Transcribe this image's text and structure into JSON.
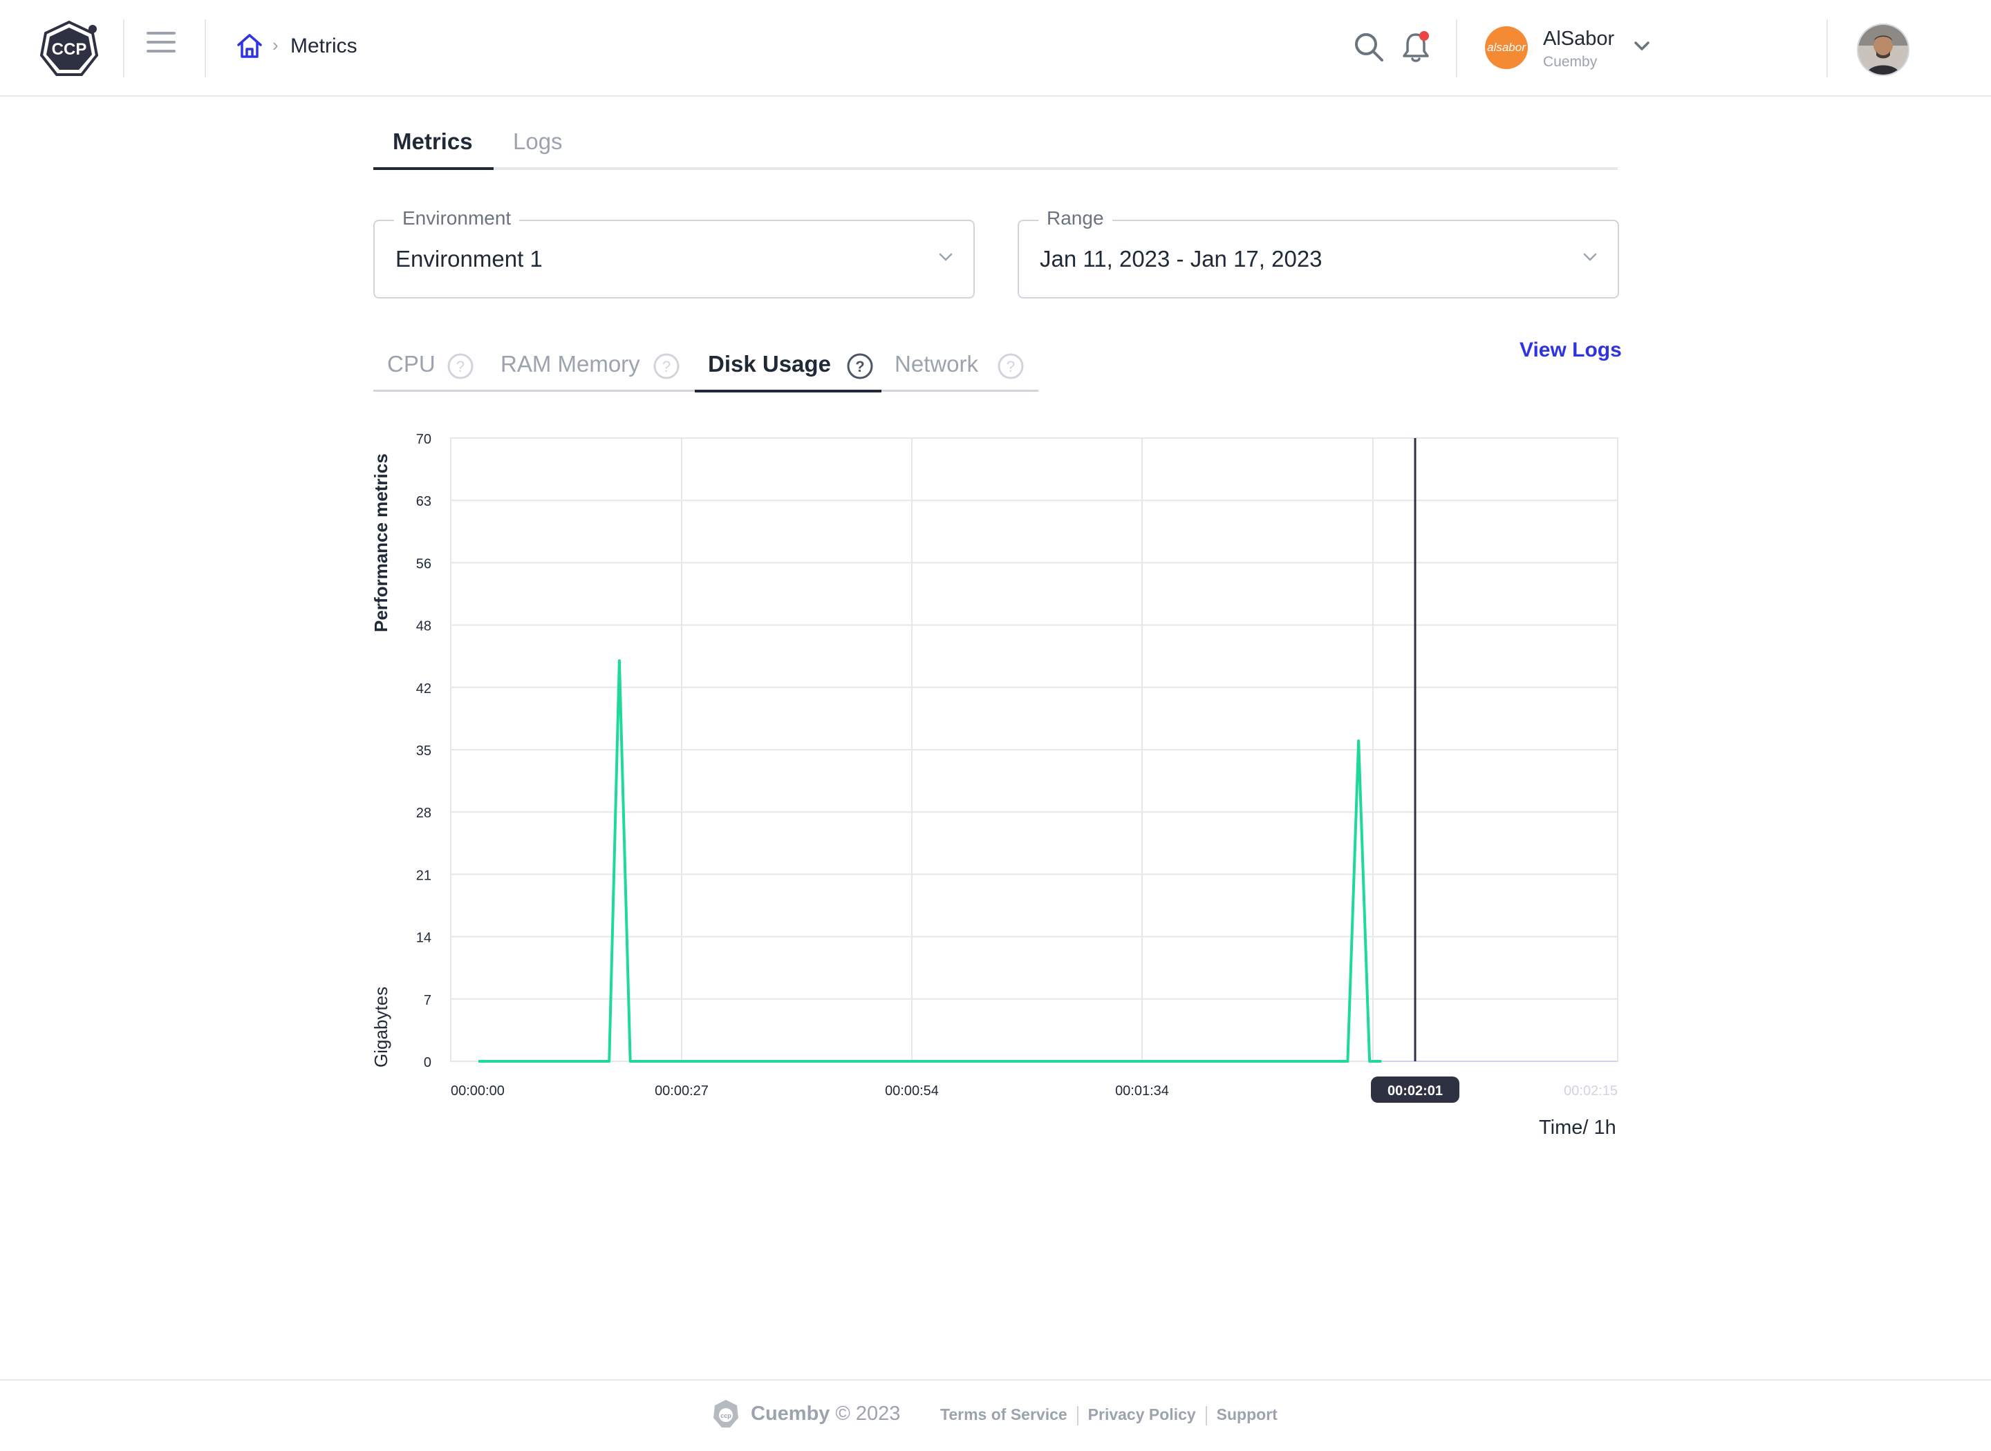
{
  "header": {
    "logo_text": "CCP",
    "breadcrumb": {
      "current": "Metrics"
    },
    "organization": {
      "name": "AlSabor",
      "subtitle": "Cuemby",
      "avatar_text": "alsabor"
    }
  },
  "page_tabs": [
    {
      "label": "Metrics",
      "active": true
    },
    {
      "label": "Logs",
      "active": false
    }
  ],
  "environment": {
    "legend": "Environment",
    "value": "Environment 1"
  },
  "range": {
    "legend": "Range",
    "value": "Jan 11, 2023 - Jan 17, 2023"
  },
  "metric_tabs": [
    {
      "label": "CPU",
      "active": false
    },
    {
      "label": "RAM Memory",
      "active": false
    },
    {
      "label": "Disk Usage",
      "active": true
    },
    {
      "label": "Network",
      "active": false
    }
  ],
  "view_logs_label": "View Logs",
  "chart_data": {
    "type": "line",
    "ylabel_top": "Performance metrics",
    "ylabel_bottom": "Gigabytes",
    "xlabel": "Time/ 1h",
    "y_ticks": [
      "70",
      "63",
      "56",
      "48",
      "42",
      "35",
      "28",
      "21",
      "14",
      "7",
      "0"
    ],
    "ylim": [
      0,
      70
    ],
    "x_ticks": [
      "00:00:00",
      "00:00:27",
      "00:00:54",
      "00:01:34",
      "00:02:01",
      "00:02:15"
    ],
    "grid": true,
    "series": [
      {
        "color": "#1fd99a",
        "points": [
          {
            "t": 0,
            "v": 0
          },
          {
            "t": 15.5,
            "v": 0
          },
          {
            "t": 16.7,
            "v": 45
          },
          {
            "t": 18,
            "v": 0
          },
          {
            "t": 103,
            "v": 0
          },
          {
            "t": 104.3,
            "v": 36
          },
          {
            "t": 105.6,
            "v": 0
          },
          {
            "t": 107,
            "v": 0
          }
        ]
      }
    ],
    "cursor": {
      "t": 111,
      "label": "00:02:01"
    },
    "colors": {
      "line": "#1fd99a",
      "cursor": "#2d3142",
      "grid": "#e5e7eb"
    }
  },
  "footer": {
    "brand": "Cuemby",
    "copyright": "© 2023",
    "links": [
      "Terms of Service",
      "Privacy Policy",
      "Support"
    ]
  }
}
